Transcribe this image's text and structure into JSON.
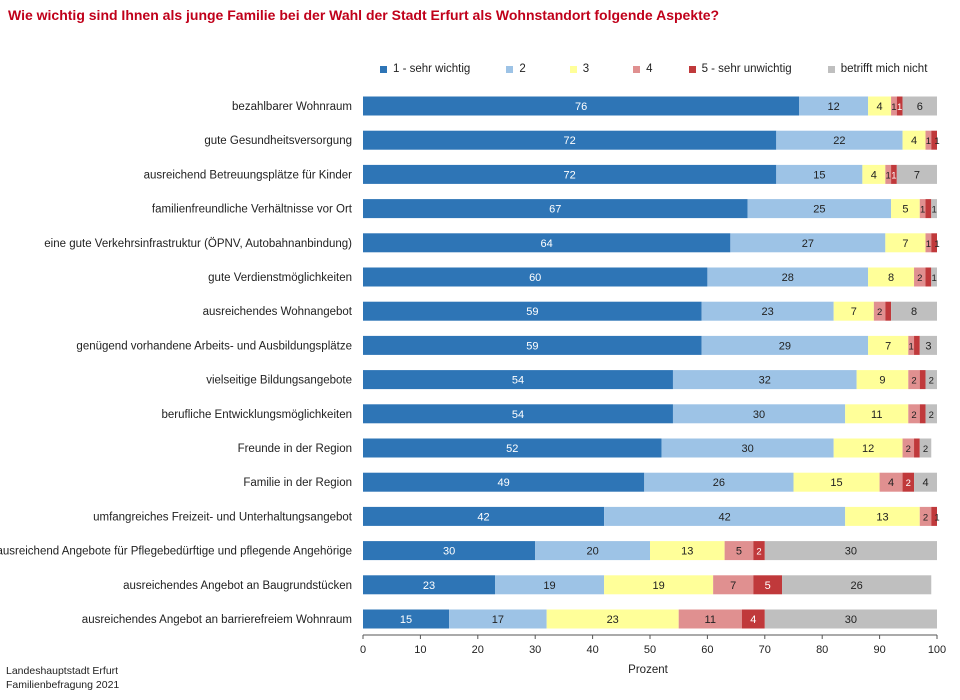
{
  "title": "Wie wichtig sind Ihnen als junge Familie bei der Wahl der Stadt Erfurt als Wohnstandort folgende Aspekte?",
  "source": [
    "Landeshauptstadt Erfurt",
    "Familienbefragung 2021"
  ],
  "chart_data": {
    "type": "bar",
    "orientation": "horizontal",
    "stacked": true,
    "title": "Wie wichtig sind Ihnen als junge Familie bei der Wahl der Stadt Erfurt als Wohnstandort folgende Aspekte?",
    "xlabel": "Prozent",
    "ylabel": "",
    "xlim": [
      0,
      100
    ],
    "xticks": [
      0,
      10,
      20,
      30,
      40,
      50,
      60,
      70,
      80,
      90,
      100
    ],
    "legend_position": "top",
    "categories": [
      "bezahlbarer Wohnraum",
      "gute Gesundheitsversorgung",
      "ausreichend Betreuungsplätze für Kinder",
      "familienfreundliche Verhältnisse vor Ort",
      "eine gute Verkehrsinfrastruktur (ÖPNV, Autobahnanbindung)",
      "gute Verdienstmöglichkeiten",
      "ausreichendes Wohnangebot",
      "genügend vorhandene Arbeits- und Ausbildungsplätze",
      "vielseitige Bildungsangebote",
      "berufliche Entwicklungsmöglichkeiten",
      "Freunde in der Region",
      "Familie in der Region",
      "umfangreiches Freizeit- und Unterhaltungsangebot",
      "ausreichend Angebote für Pflegebedürftige und pflegende Angehörige",
      "ausreichendes Angebot an Baugrundstücken",
      "ausreichendes Angebot an barrierefreiem Wohnraum"
    ],
    "series": [
      {
        "name": "1 - sehr wichtig",
        "color": "#2e75b6",
        "label_color": "#ffffff",
        "values": [
          76,
          72,
          72,
          67,
          64,
          60,
          59,
          59,
          54,
          54,
          52,
          49,
          42,
          30,
          23,
          15
        ],
        "labels": [
          "76",
          "72",
          "72",
          "67",
          "64",
          "60",
          "59",
          "59",
          "54",
          "54",
          "52",
          "49",
          "42",
          "30",
          "23",
          "15"
        ]
      },
      {
        "name": "2",
        "color": "#9dc3e6",
        "label_color": "#222222",
        "values": [
          12,
          22,
          15,
          25,
          27,
          28,
          23,
          29,
          32,
          30,
          30,
          26,
          42,
          20,
          19,
          17
        ],
        "labels": [
          "12",
          "22",
          "15",
          "25",
          "27",
          "28",
          "23",
          "29",
          "32",
          "30",
          "30",
          "26",
          "42",
          "20",
          "19",
          "17"
        ]
      },
      {
        "name": "3",
        "color": "#ffff99",
        "label_color": "#222222",
        "values": [
          4,
          4,
          4,
          5,
          7,
          8,
          7,
          7,
          9,
          11,
          12,
          15,
          13,
          13,
          19,
          23
        ],
        "labels": [
          "4",
          "4",
          "4",
          "5",
          "7",
          "8",
          "7",
          "7",
          "9",
          "11",
          "12",
          "15",
          "13",
          "13",
          "19",
          "23"
        ]
      },
      {
        "name": "4",
        "color": "#e09090",
        "label_color": "#222222",
        "values": [
          1,
          1,
          1,
          1,
          1,
          2,
          2,
          1,
          2,
          2,
          2,
          4,
          2,
          5,
          7,
          11
        ],
        "labels": [
          "1",
          "1",
          "1",
          "1",
          "1",
          "2",
          "2",
          "1",
          "2",
          "2",
          "2",
          "4",
          "2",
          "5",
          "7",
          "11"
        ]
      },
      {
        "name": "5 - sehr unwichtig",
        "color": "#c0393b",
        "label_color": "#ffffff",
        "values": [
          1,
          1,
          1,
          1,
          1,
          1,
          1,
          1,
          1,
          1,
          1,
          2,
          1,
          2,
          5,
          4
        ],
        "labels": [
          "1",
          "",
          "1",
          "",
          "",
          "",
          "",
          "",
          "",
          "",
          "",
          "2",
          "",
          "2",
          "5",
          "4"
        ]
      },
      {
        "name": "betrifft mich nicht",
        "color": "#bfbfbf",
        "label_color": "#222222",
        "values": [
          6,
          1,
          7,
          1,
          1,
          1,
          8,
          3,
          2,
          2,
          2,
          4,
          1,
          30,
          26,
          30
        ],
        "labels": [
          "6",
          "1",
          "7",
          "1",
          "1",
          "1",
          "8",
          "3",
          "2",
          "2",
          "2",
          "4",
          "1",
          "30",
          "26",
          "30"
        ]
      }
    ]
  }
}
